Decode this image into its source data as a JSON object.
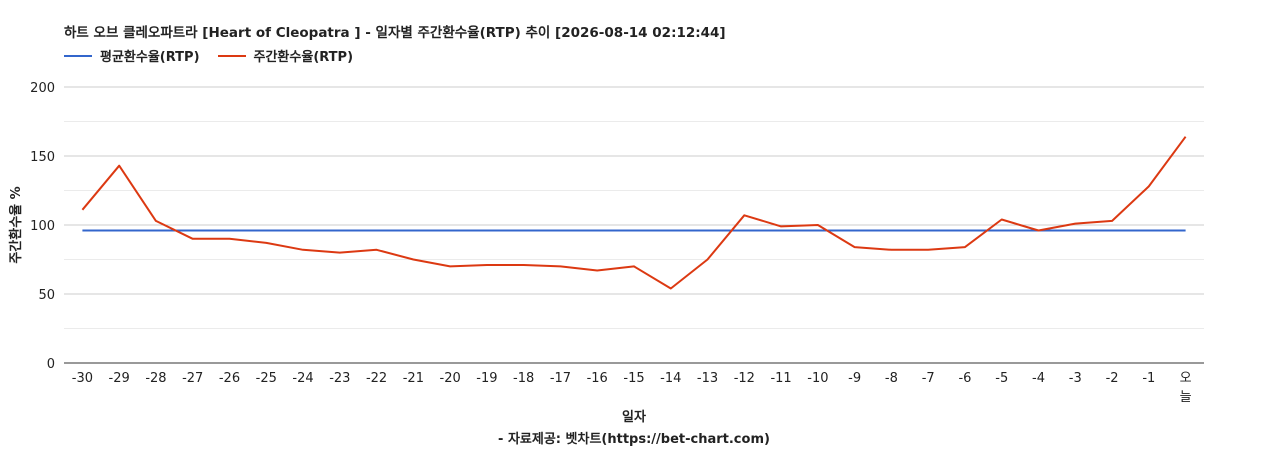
{
  "chart_data": {
    "type": "line",
    "title": "하트 오브 클레오파트라 [Heart of Cleopatra ] - 일자별 주간환수율(RTP) 추이 [2026-08-14 02:12:44]",
    "xlabel": "일자",
    "ylabel": "주간환수율 %",
    "ylim": [
      0,
      200
    ],
    "yticks": [
      0,
      50,
      100,
      150,
      200
    ],
    "grid": true,
    "legend_position": "top-left",
    "categories": [
      "-30",
      "-29",
      "-28",
      "-27",
      "-26",
      "-25",
      "-24",
      "-23",
      "-22",
      "-21",
      "-20",
      "-19",
      "-18",
      "-17",
      "-16",
      "-15",
      "-14",
      "-13",
      "-12",
      "-11",
      "-10",
      "-9",
      "-8",
      "-7",
      "-6",
      "-5",
      "-4",
      "-3",
      "-2",
      "-1",
      "오늘"
    ],
    "series": [
      {
        "name": "평균환수율(RTP)",
        "color": "#3366cc",
        "values": [
          96,
          96,
          96,
          96,
          96,
          96,
          96,
          96,
          96,
          96,
          96,
          96,
          96,
          96,
          96,
          96,
          96,
          96,
          96,
          96,
          96,
          96,
          96,
          96,
          96,
          96,
          96,
          96,
          96,
          96,
          96
        ]
      },
      {
        "name": "주간환수율(RTP)",
        "color": "#dc3912",
        "values": [
          111,
          143,
          103,
          90,
          90,
          87,
          82,
          80,
          82,
          75,
          70,
          71,
          71,
          70,
          67,
          70,
          54,
          75,
          107,
          99,
          100,
          84,
          82,
          82,
          84,
          104,
          96,
          101,
          103,
          128,
          164
        ]
      }
    ]
  },
  "footer": "- 자료제공: 벳차트(https://bet-chart.com)"
}
